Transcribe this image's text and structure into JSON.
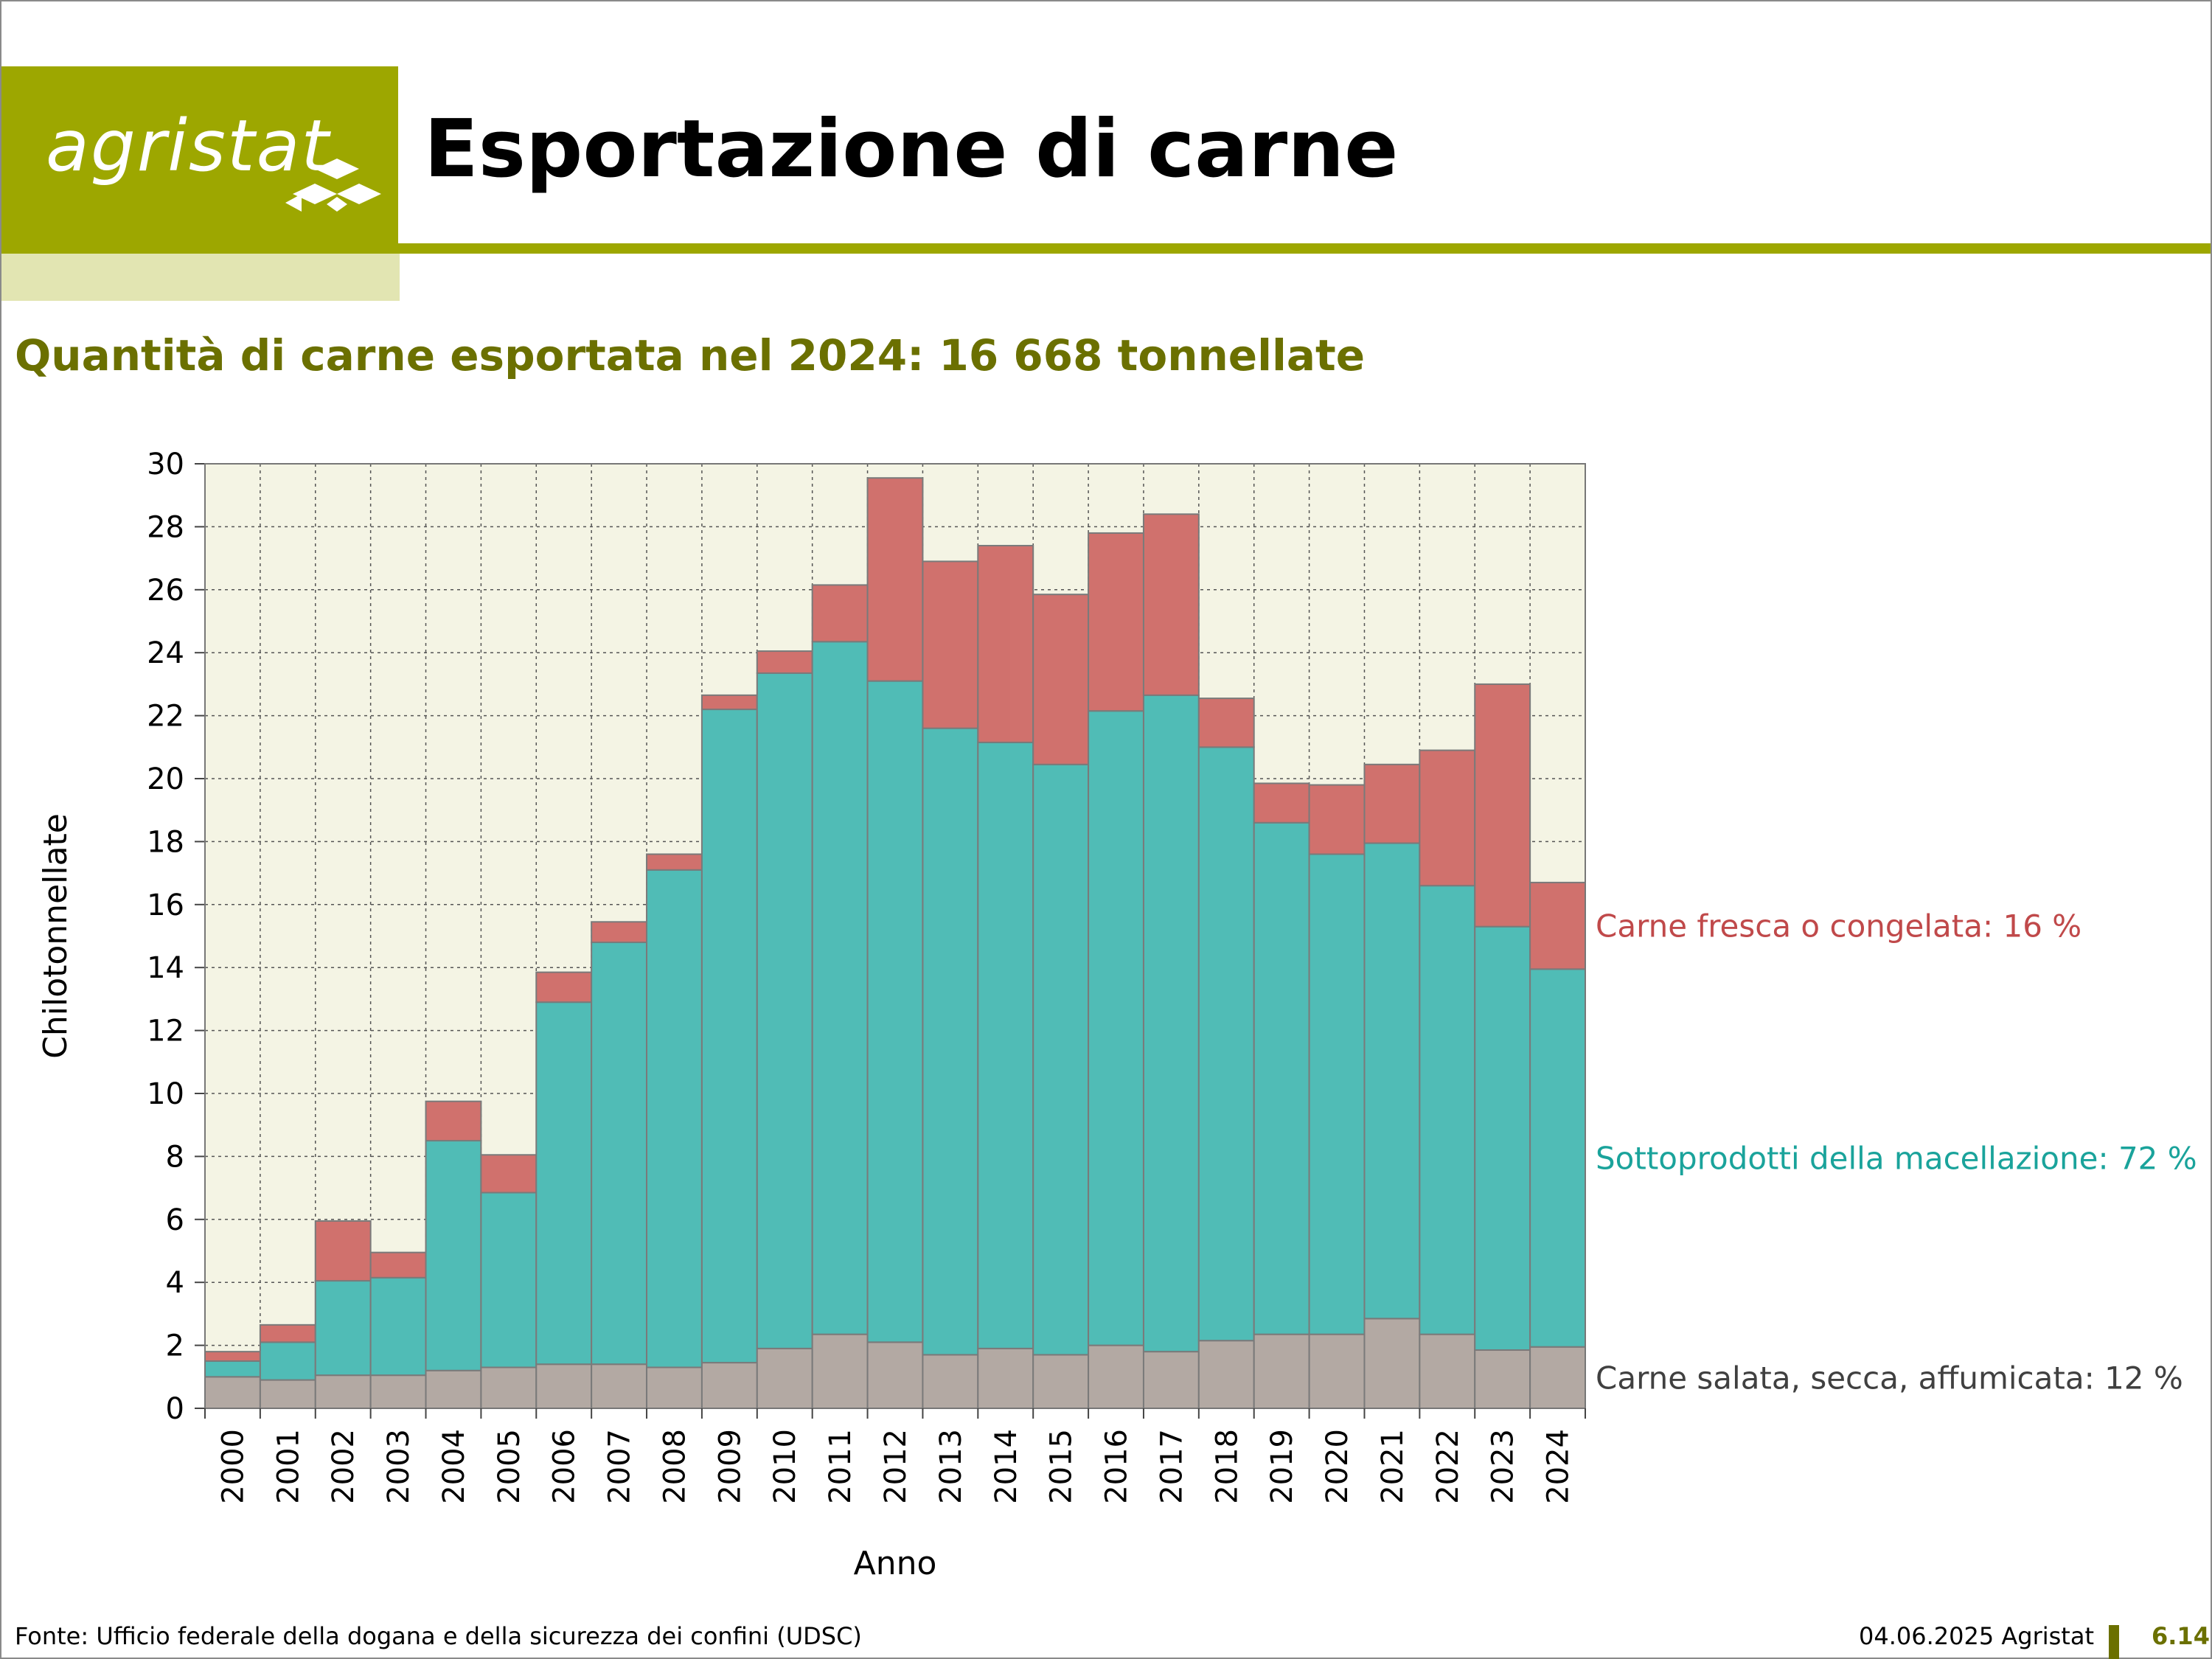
{
  "header": {
    "logo_text": "agristat",
    "title": "Esportazione di carne"
  },
  "subtitle": "Quantità di carne esportata nel 2024: 16 668 tonnellate",
  "colors": {
    "brand": "#9da700",
    "plot_background": "#f4f4e4",
    "salted": "#b3a9a3",
    "byproducts": "#50bcb6",
    "fresh": "#d0716d",
    "label_fresh": "#c0494a",
    "label_byproducts": "#1aa39b",
    "label_salted": "#404040"
  },
  "chart_data": {
    "type": "bar",
    "stacked": true,
    "xlabel": "Anno",
    "ylabel": "Chilotonnellate",
    "ylim": [
      0,
      30
    ],
    "yticks": [
      0,
      2,
      4,
      6,
      8,
      10,
      12,
      14,
      16,
      18,
      20,
      22,
      24,
      26,
      28,
      30
    ],
    "grid": true,
    "categories": [
      "2000",
      "2001",
      "2002",
      "2003",
      "2004",
      "2005",
      "2006",
      "2007",
      "2008",
      "2009",
      "2010",
      "2011",
      "2012",
      "2013",
      "2014",
      "2015",
      "2016",
      "2017",
      "2018",
      "2019",
      "2020",
      "2021",
      "2022",
      "2023",
      "2024"
    ],
    "series": [
      {
        "key": "salted",
        "label": "Carne salata, secca, affumicata: 12 %",
        "values": [
          1.0,
          0.9,
          1.05,
          1.05,
          1.2,
          1.3,
          1.4,
          1.4,
          1.3,
          1.45,
          1.9,
          2.35,
          2.1,
          1.7,
          1.9,
          1.7,
          2.0,
          1.8,
          2.15,
          2.35,
          2.35,
          2.85,
          2.35,
          1.85,
          1.95
        ]
      },
      {
        "key": "byproducts",
        "label": "Sottoprodotti della macellazione: 72 %",
        "values": [
          0.5,
          1.2,
          3.0,
          3.1,
          7.3,
          5.55,
          11.5,
          13.4,
          15.8,
          20.75,
          21.45,
          22.0,
          21.0,
          19.9,
          19.25,
          18.75,
          20.15,
          20.85,
          18.85,
          16.25,
          15.25,
          15.1,
          14.25,
          13.45,
          12.0
        ]
      },
      {
        "key": "fresh",
        "label": "Carne fresca o congelata: 16 %",
        "values": [
          0.3,
          0.55,
          1.9,
          0.8,
          1.25,
          1.2,
          0.95,
          0.65,
          0.5,
          0.45,
          0.7,
          1.8,
          6.45,
          5.3,
          6.25,
          5.4,
          5.65,
          5.75,
          1.55,
          1.25,
          2.2,
          2.5,
          4.3,
          7.7,
          2.75
        ]
      }
    ]
  },
  "footer": {
    "source": "Fonte: Ufficio federale della dogana e della sicurezza dei confini (UDSC)",
    "date": "04.06.2025 Agristat",
    "page": "6.14"
  }
}
